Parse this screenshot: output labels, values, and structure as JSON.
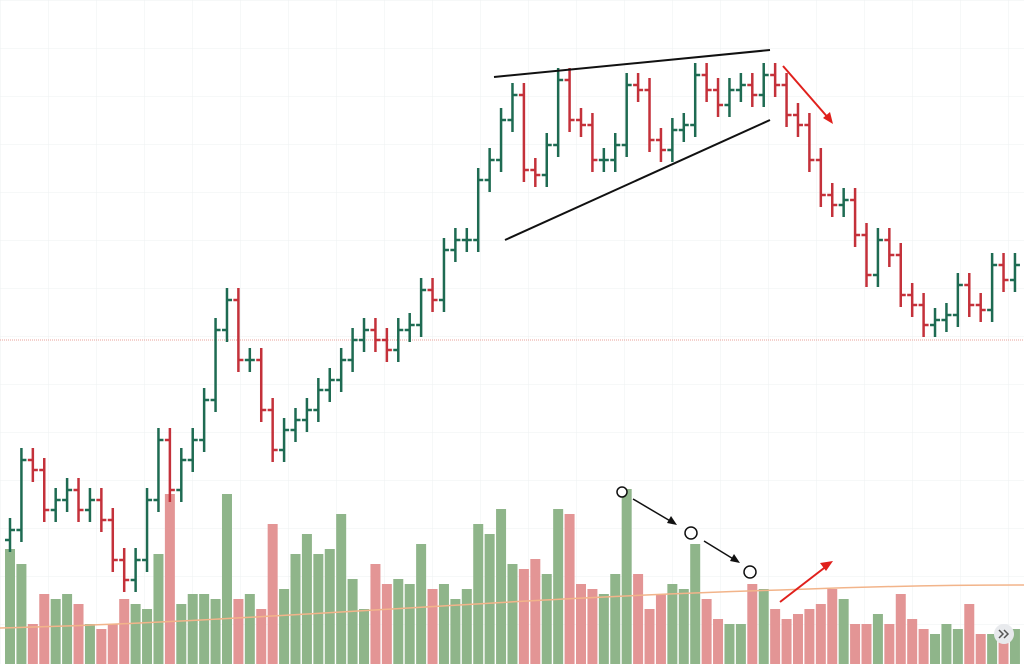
{
  "chart_data": {
    "type": "ohlc",
    "open": [
      160,
      170,
      240,
      230,
      190,
      200,
      210,
      190,
      200,
      180,
      140,
      120,
      140,
      200,
      260,
      210,
      240,
      260,
      300,
      370,
      400,
      340,
      340,
      290,
      250,
      270,
      280,
      290,
      310,
      320,
      340,
      360,
      370,
      360,
      350,
      370,
      375,
      410,
      400,
      450,
      460,
      460,
      520,
      540,
      580,
      605,
      530,
      525,
      555,
      620,
      580,
      575,
      540,
      540,
      555,
      615,
      610,
      560,
      550,
      570,
      575,
      625,
      610,
      595,
      610,
      615,
      605,
      625,
      615,
      585,
      575,
      540,
      505,
      495,
      500,
      465,
      425,
      460,
      445,
      405,
      395,
      375,
      380,
      385,
      415,
      395,
      390,
      435,
      420
    ],
    "high": [
      182,
      252,
      252,
      242,
      212,
      222,
      222,
      212,
      212,
      192,
      152,
      152,
      212,
      272,
      272,
      252,
      272,
      312,
      382,
      412,
      412,
      352,
      352,
      302,
      282,
      292,
      302,
      322,
      332,
      352,
      372,
      382,
      382,
      372,
      382,
      387,
      422,
      422,
      462,
      472,
      472,
      532,
      552,
      592,
      617,
      617,
      542,
      567,
      632,
      632,
      592,
      587,
      552,
      567,
      627,
      627,
      622,
      572,
      582,
      587,
      637,
      637,
      622,
      622,
      627,
      627,
      637,
      637,
      627,
      597,
      587,
      552,
      517,
      512,
      512,
      477,
      472,
      472,
      457,
      417,
      407,
      392,
      397,
      427,
      427,
      407,
      447,
      447,
      447
    ],
    "low": [
      148,
      158,
      218,
      178,
      178,
      188,
      178,
      178,
      168,
      128,
      108,
      108,
      128,
      188,
      198,
      198,
      228,
      248,
      288,
      358,
      328,
      328,
      278,
      238,
      238,
      258,
      268,
      278,
      298,
      308,
      328,
      348,
      348,
      338,
      338,
      358,
      363,
      388,
      388,
      438,
      448,
      448,
      508,
      528,
      568,
      518,
      513,
      513,
      543,
      568,
      563,
      528,
      528,
      528,
      543,
      598,
      548,
      538,
      538,
      558,
      563,
      598,
      583,
      583,
      598,
      593,
      593,
      603,
      573,
      563,
      528,
      493,
      483,
      483,
      453,
      413,
      413,
      433,
      393,
      383,
      363,
      363,
      368,
      373,
      383,
      378,
      378,
      408,
      408
    ],
    "close": [
      170,
      240,
      230,
      190,
      200,
      210,
      190,
      200,
      180,
      140,
      120,
      140,
      200,
      260,
      210,
      240,
      260,
      300,
      370,
      400,
      340,
      340,
      290,
      250,
      270,
      280,
      290,
      310,
      320,
      340,
      360,
      370,
      360,
      350,
      370,
      375,
      410,
      400,
      450,
      460,
      460,
      520,
      540,
      580,
      605,
      530,
      525,
      555,
      620,
      580,
      575,
      540,
      540,
      555,
      615,
      610,
      560,
      550,
      570,
      575,
      625,
      610,
      595,
      610,
      615,
      605,
      625,
      615,
      585,
      575,
      540,
      505,
      495,
      500,
      465,
      425,
      460,
      445,
      405,
      395,
      375,
      380,
      385,
      415,
      395,
      390,
      435,
      420,
      435
    ],
    "volume": [
      115,
      100,
      40,
      70,
      65,
      70,
      60,
      40,
      35,
      40,
      65,
      60,
      55,
      110,
      170,
      60,
      70,
      70,
      65,
      170,
      65,
      70,
      55,
      140,
      75,
      110,
      130,
      110,
      115,
      150,
      85,
      55,
      100,
      80,
      85,
      80,
      120,
      75,
      80,
      65,
      75,
      140,
      130,
      155,
      100,
      95,
      105,
      90,
      155,
      150,
      80,
      75,
      70,
      90,
      175,
      90,
      55,
      70,
      80,
      75,
      120,
      65,
      45,
      40,
      40,
      80,
      75,
      55,
      45,
      50,
      55,
      60,
      75,
      65,
      40,
      40,
      50,
      40,
      70,
      45,
      35,
      30,
      40,
      35,
      60,
      30,
      30,
      25,
      35
    ],
    "ylim": [
      36,
      700
    ],
    "volume_ylim": [
      0,
      200
    ],
    "up_color": "#1e6b52",
    "down_color": "#c4313a",
    "volume_up_color": "#8fb58a",
    "volume_down_color": "#e39595"
  }
}
